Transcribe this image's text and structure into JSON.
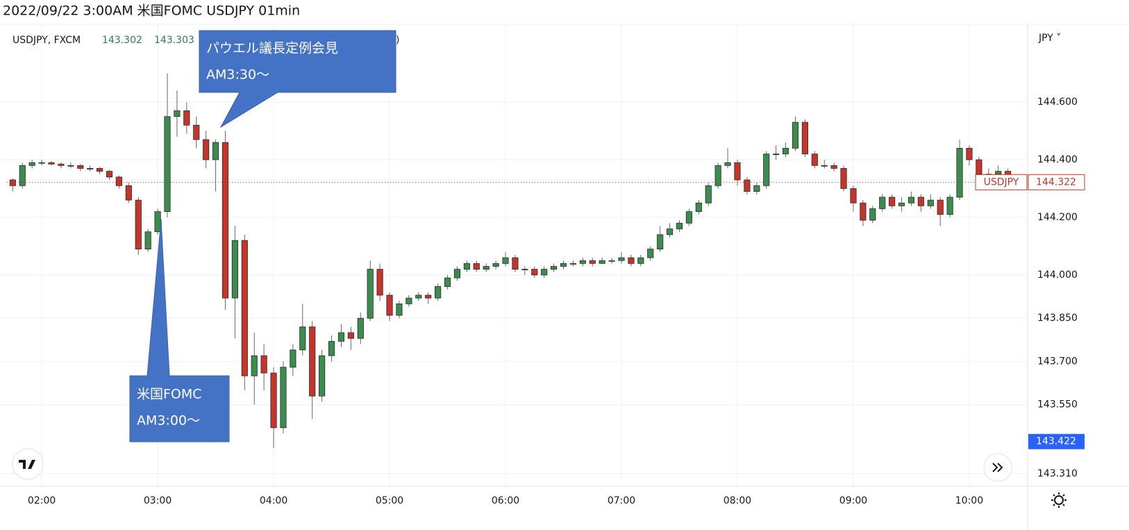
{
  "chart_data": {
    "type": "candlestick",
    "title": "2022/09/22 3:00AM 米国FOMC USDJPY 01min",
    "symbol": "USDJPY, FXCM",
    "header_values": [
      143.302,
      143.303
    ],
    "header_tail": ")",
    "currency": "JPY ˅",
    "symbol_tag": "USDJPY",
    "last_price": 144.322,
    "marked_price": 143.422,
    "annotations": [
      [
        "パウエル議長定例会見",
        "AM3:30～"
      ],
      [
        "米国FOMC",
        "AM3:00～"
      ]
    ],
    "up_color": "#3d8c4f",
    "down_color": "#c4352b",
    "grid": true,
    "xlim": [
      102,
      630.2
    ],
    "xticks": [
      {
        "value": 120,
        "label": "02:00"
      },
      {
        "value": 180,
        "label": "03:00"
      },
      {
        "value": 240,
        "label": "04:00"
      },
      {
        "value": 300,
        "label": "05:00"
      },
      {
        "value": 360,
        "label": "06:00"
      },
      {
        "value": 420,
        "label": "07:00"
      },
      {
        "value": 480,
        "label": "08:00"
      },
      {
        "value": 540,
        "label": "09:00"
      },
      {
        "value": 600,
        "label": "10:00"
      }
    ],
    "ylim": [
      143.267,
      144.87
    ],
    "yticks": [
      {
        "value": 143.31,
        "label": "143.310"
      },
      {
        "value": 143.55,
        "label": "143.550"
      },
      {
        "value": 143.7,
        "label": "143.700"
      },
      {
        "value": 143.85,
        "label": "143.850"
      },
      {
        "value": 144.0,
        "label": "144.000"
      },
      {
        "value": 144.2,
        "label": "144.200"
      },
      {
        "value": 144.4,
        "label": "144.400"
      },
      {
        "value": 144.6,
        "label": "144.600"
      }
    ],
    "x": [
      105,
      110,
      115,
      120,
      125,
      130,
      135,
      140,
      145,
      150,
      155,
      160,
      165,
      170,
      175,
      180,
      185,
      190,
      195,
      200,
      205,
      210,
      215,
      220,
      225,
      230,
      235,
      240,
      245,
      250,
      255,
      260,
      265,
      270,
      275,
      280,
      285,
      290,
      295,
      300,
      305,
      310,
      315,
      320,
      325,
      330,
      335,
      340,
      345,
      350,
      355,
      360,
      365,
      370,
      375,
      380,
      385,
      390,
      395,
      400,
      405,
      410,
      415,
      420,
      425,
      430,
      435,
      440,
      445,
      450,
      455,
      460,
      465,
      470,
      475,
      480,
      485,
      490,
      495,
      500,
      505,
      510,
      515,
      520,
      525,
      530,
      535,
      540,
      545,
      550,
      555,
      560,
      565,
      570,
      575,
      580,
      585,
      590,
      595,
      600,
      605,
      610,
      615,
      620,
      625
    ],
    "series": [
      {
        "name": "USDJPY",
        "values": [
          [
            144.33,
            144.335,
            144.29,
            144.31
          ],
          [
            144.31,
            144.39,
            144.3,
            144.38
          ],
          [
            144.38,
            144.4,
            144.37,
            144.39
          ],
          [
            144.39,
            144.4,
            144.38,
            144.39
          ],
          [
            144.39,
            144.395,
            144.38,
            144.385
          ],
          [
            144.385,
            144.39,
            144.37,
            144.38
          ],
          [
            144.38,
            144.39,
            144.37,
            144.38
          ],
          [
            144.38,
            144.385,
            144.36,
            144.37
          ],
          [
            144.37,
            144.38,
            144.36,
            144.37
          ],
          [
            144.37,
            144.375,
            144.35,
            144.36
          ],
          [
            144.36,
            144.365,
            144.33,
            144.34
          ],
          [
            144.34,
            144.345,
            144.3,
            144.31
          ],
          [
            144.31,
            144.32,
            144.25,
            144.26
          ],
          [
            144.26,
            144.27,
            144.07,
            144.09
          ],
          [
            144.09,
            144.16,
            144.08,
            144.15
          ],
          [
            144.15,
            144.23,
            144.14,
            144.22
          ],
          [
            144.22,
            144.7,
            144.2,
            144.55
          ],
          [
            144.55,
            144.64,
            144.48,
            144.57
          ],
          [
            144.57,
            144.6,
            144.49,
            144.52
          ],
          [
            144.52,
            144.55,
            144.44,
            144.47
          ],
          [
            144.47,
            144.5,
            144.37,
            144.4
          ],
          [
            144.4,
            144.47,
            144.29,
            144.46
          ],
          [
            144.46,
            144.5,
            143.88,
            143.92
          ],
          [
            143.92,
            144.17,
            143.78,
            144.12
          ],
          [
            144.12,
            144.14,
            143.6,
            143.65
          ],
          [
            143.65,
            143.8,
            143.55,
            143.72
          ],
          [
            143.72,
            143.76,
            143.6,
            143.66
          ],
          [
            143.66,
            143.68,
            143.4,
            143.47
          ],
          [
            143.47,
            143.7,
            143.45,
            143.68
          ],
          [
            143.68,
            143.76,
            143.65,
            143.74
          ],
          [
            143.74,
            143.9,
            143.72,
            143.82
          ],
          [
            143.82,
            143.84,
            143.5,
            143.58
          ],
          [
            143.58,
            143.74,
            143.56,
            143.72
          ],
          [
            143.72,
            143.79,
            143.7,
            143.77
          ],
          [
            143.77,
            143.83,
            143.75,
            143.8
          ],
          [
            143.8,
            143.82,
            143.74,
            143.78
          ],
          [
            143.78,
            143.87,
            143.76,
            143.85
          ],
          [
            143.85,
            144.05,
            143.84,
            144.02
          ],
          [
            144.02,
            144.04,
            143.91,
            143.93
          ],
          [
            143.93,
            143.94,
            143.84,
            143.86
          ],
          [
            143.86,
            143.91,
            143.85,
            143.9
          ],
          [
            143.9,
            143.93,
            143.89,
            143.92
          ],
          [
            143.92,
            143.94,
            143.91,
            143.93
          ],
          [
            143.93,
            143.94,
            143.9,
            143.92
          ],
          [
            143.92,
            143.97,
            143.91,
            143.96
          ],
          [
            143.96,
            144.0,
            143.95,
            143.99
          ],
          [
            143.99,
            144.03,
            143.98,
            144.02
          ],
          [
            144.02,
            144.05,
            144.01,
            144.04
          ],
          [
            144.04,
            144.05,
            144.01,
            144.02
          ],
          [
            144.02,
            144.04,
            144.01,
            144.03
          ],
          [
            144.03,
            144.05,
            144.02,
            144.04
          ],
          [
            144.04,
            144.08,
            144.03,
            144.06
          ],
          [
            144.06,
            144.07,
            144.01,
            144.02
          ],
          [
            144.02,
            144.03,
            144.0,
            144.02
          ],
          [
            144.02,
            144.03,
            143.99,
            144.0
          ],
          [
            144.0,
            144.03,
            143.99,
            144.02
          ],
          [
            144.02,
            144.04,
            144.01,
            144.03
          ],
          [
            144.03,
            144.05,
            144.02,
            144.04
          ],
          [
            144.04,
            144.05,
            144.03,
            144.04
          ],
          [
            144.04,
            144.06,
            144.03,
            144.05
          ],
          [
            144.05,
            144.06,
            144.03,
            144.04
          ],
          [
            144.04,
            144.06,
            144.04,
            144.05
          ],
          [
            144.05,
            144.06,
            144.04,
            144.05
          ],
          [
            144.05,
            144.08,
            144.04,
            144.06
          ],
          [
            144.06,
            144.07,
            144.03,
            144.04
          ],
          [
            144.04,
            144.07,
            144.03,
            144.06
          ],
          [
            144.06,
            144.1,
            144.05,
            144.09
          ],
          [
            144.09,
            144.17,
            144.08,
            144.14
          ],
          [
            144.14,
            144.18,
            144.13,
            144.16
          ],
          [
            144.16,
            144.19,
            144.15,
            144.18
          ],
          [
            144.18,
            144.23,
            144.17,
            144.22
          ],
          [
            144.22,
            144.26,
            144.21,
            144.25
          ],
          [
            144.25,
            144.32,
            144.24,
            144.31
          ],
          [
            144.31,
            144.39,
            144.3,
            144.38
          ],
          [
            144.38,
            144.44,
            144.37,
            144.39
          ],
          [
            144.39,
            144.4,
            144.31,
            144.33
          ],
          [
            144.33,
            144.34,
            144.28,
            144.29
          ],
          [
            144.29,
            144.32,
            144.28,
            144.31
          ],
          [
            144.31,
            144.43,
            144.3,
            144.42
          ],
          [
            144.42,
            144.45,
            144.4,
            144.42
          ],
          [
            144.42,
            144.46,
            144.41,
            144.44
          ],
          [
            144.44,
            144.55,
            144.43,
            144.53
          ],
          [
            144.53,
            144.54,
            144.41,
            144.42
          ],
          [
            144.42,
            144.43,
            144.37,
            144.38
          ],
          [
            144.38,
            144.4,
            144.37,
            144.38
          ],
          [
            144.38,
            144.39,
            144.36,
            144.37
          ],
          [
            144.37,
            144.38,
            144.29,
            144.3
          ],
          [
            144.3,
            144.31,
            144.22,
            144.25
          ],
          [
            144.25,
            144.26,
            144.17,
            144.19
          ],
          [
            144.19,
            144.24,
            144.18,
            144.23
          ],
          [
            144.23,
            144.28,
            144.22,
            144.27
          ],
          [
            144.27,
            144.28,
            144.23,
            144.24
          ],
          [
            144.24,
            144.27,
            144.22,
            144.25
          ],
          [
            144.25,
            144.29,
            144.24,
            144.27
          ],
          [
            144.27,
            144.28,
            144.22,
            144.24
          ],
          [
            144.24,
            144.28,
            144.23,
            144.26
          ],
          [
            144.26,
            144.27,
            144.17,
            144.21
          ],
          [
            144.21,
            144.28,
            144.2,
            144.27
          ],
          [
            144.27,
            144.47,
            144.26,
            144.44
          ],
          [
            144.44,
            144.45,
            144.38,
            144.4
          ],
          [
            144.4,
            144.41,
            144.34,
            144.35
          ],
          [
            144.35,
            144.37,
            144.34,
            144.35
          ],
          [
            144.35,
            144.38,
            144.34,
            144.36
          ],
          [
            144.36,
            144.37,
            144.33,
            144.34
          ],
          [
            144.34,
            144.35,
            144.32,
            144.322
          ]
        ]
      }
    ]
  }
}
